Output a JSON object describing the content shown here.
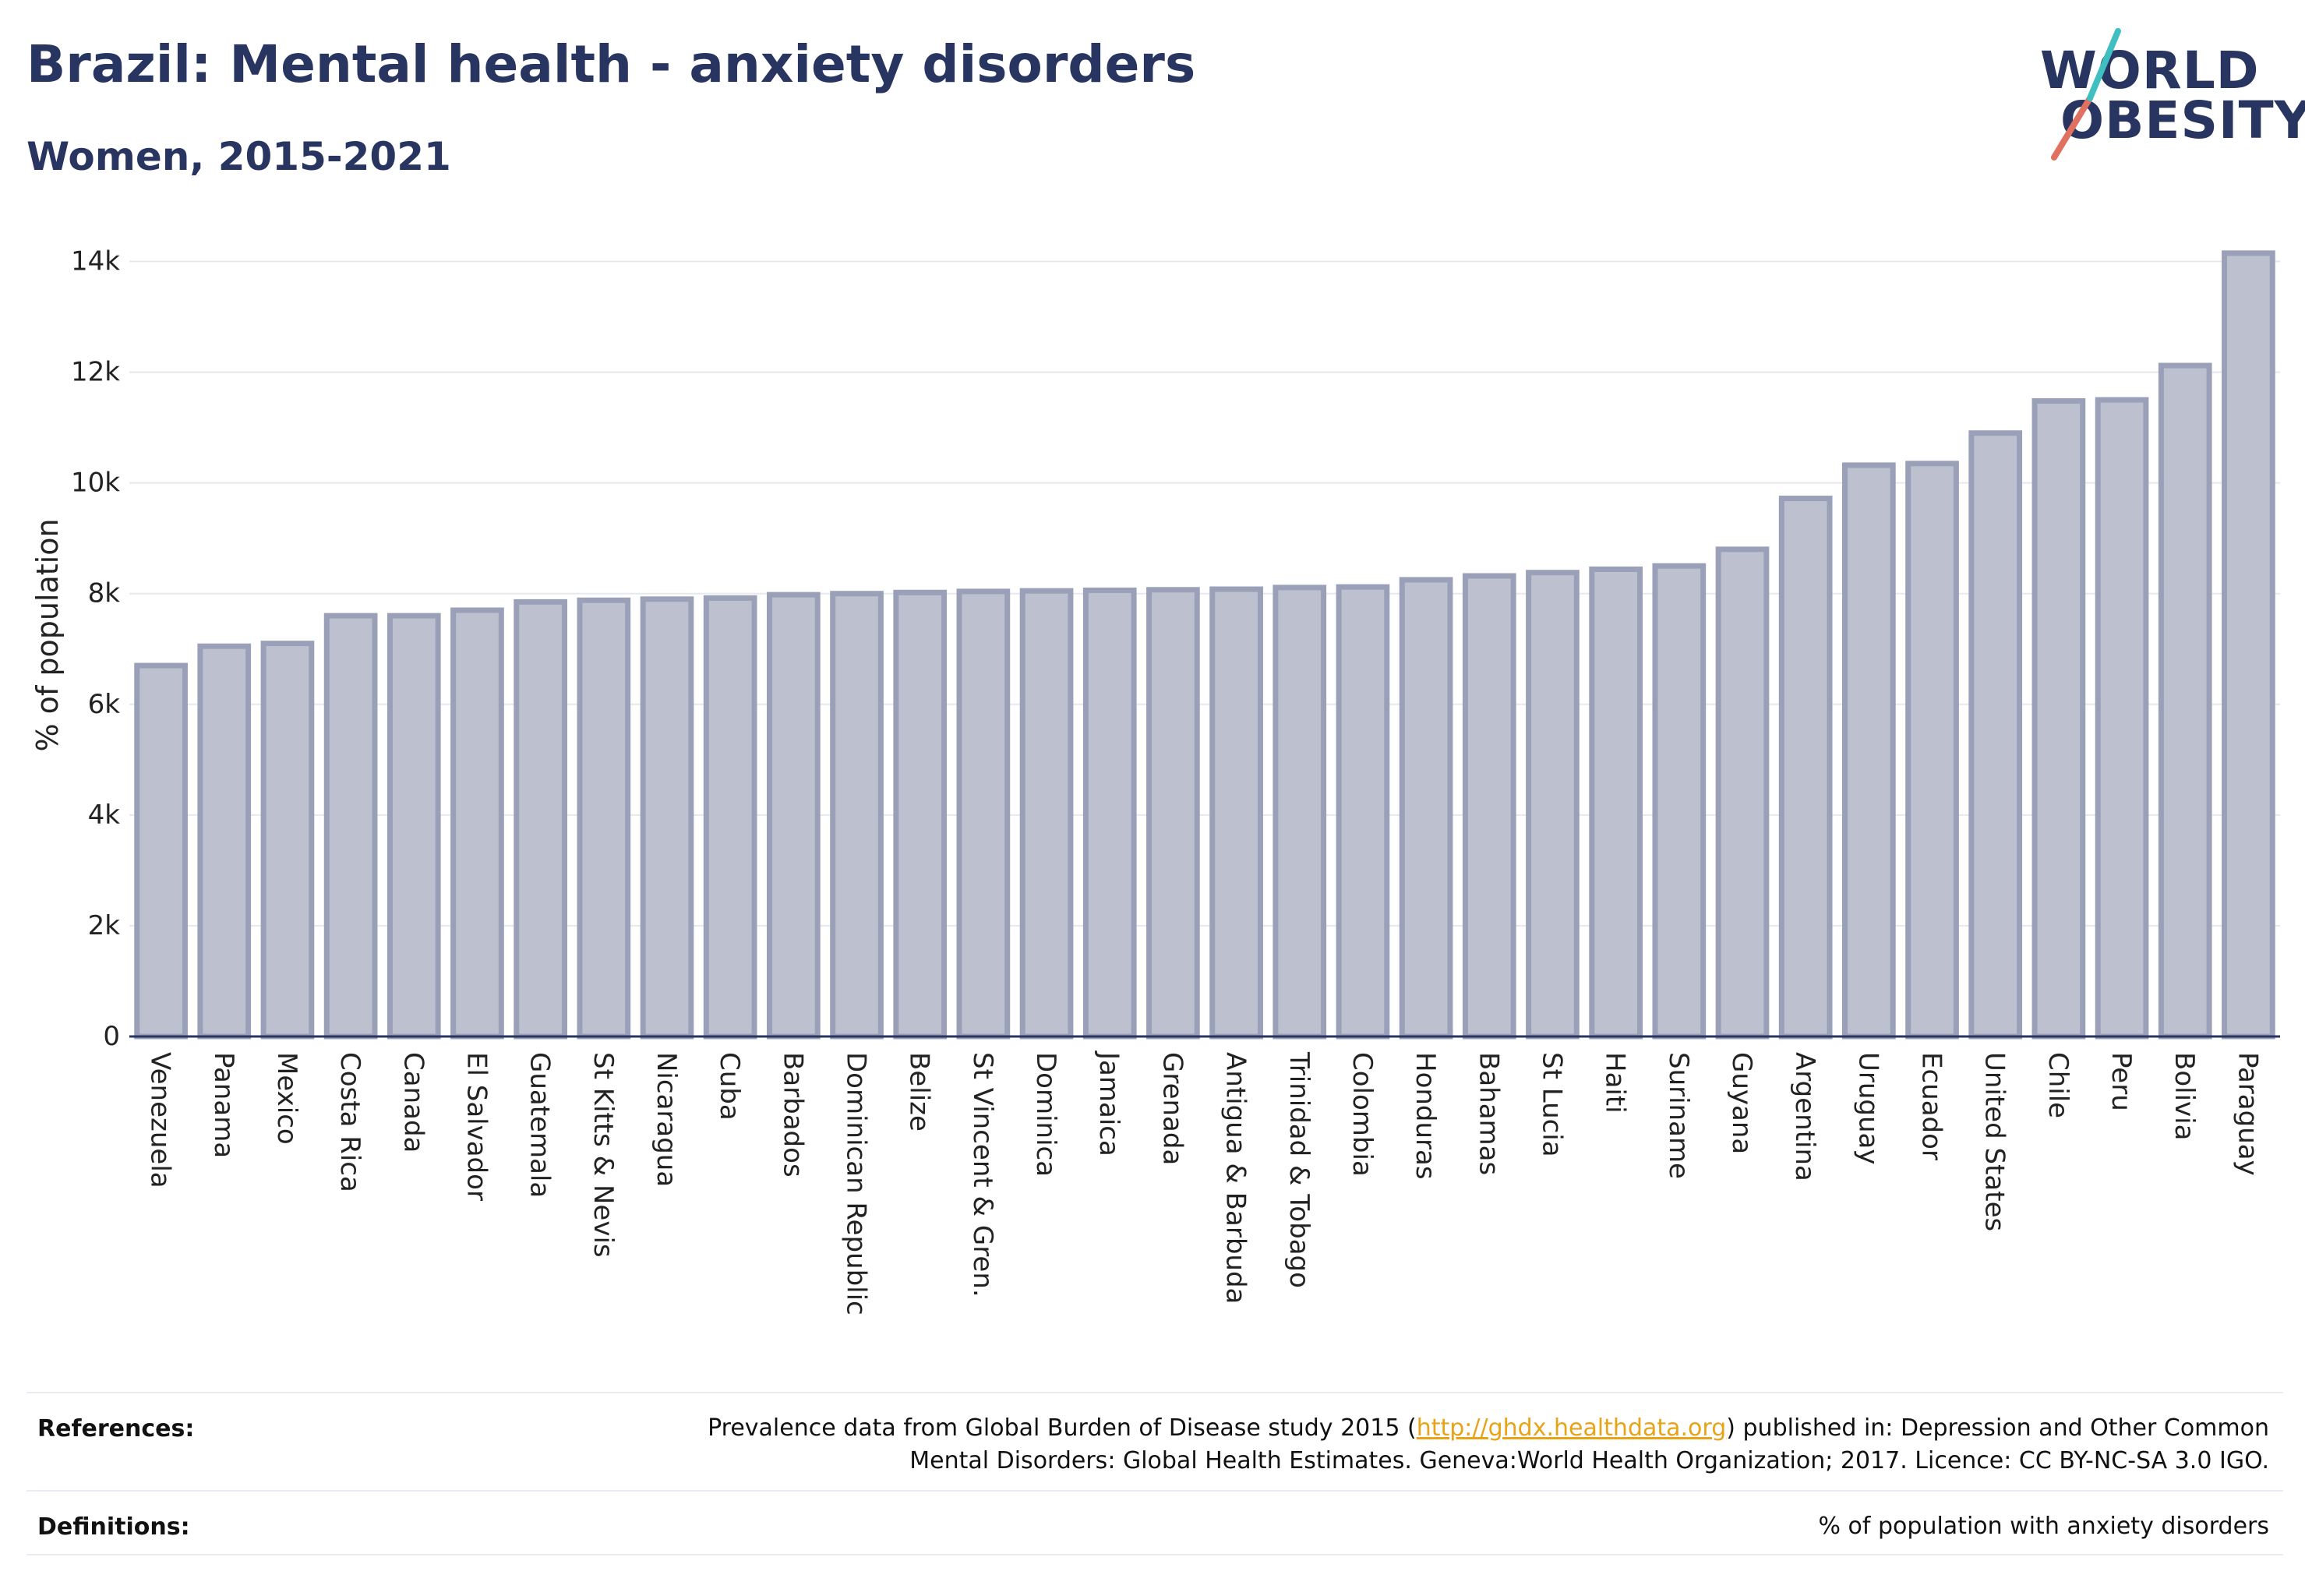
{
  "header": {
    "title": "Brazil: Mental health - anxiety disorders",
    "subtitle": "Women, 2015-2021"
  },
  "logo": {
    "line1": "WORLD",
    "line2": "OBESITY",
    "brand_color": "#283560",
    "slash_colors": [
      "#e0705f",
      "#3fbfbf"
    ]
  },
  "chart_data": {
    "type": "bar",
    "ylabel": "% of population",
    "xlabel": "",
    "ylim": [
      0,
      14500
    ],
    "yticks": [
      0,
      2000,
      4000,
      6000,
      8000,
      10000,
      12000,
      14000
    ],
    "ytick_labels": [
      "0",
      "2k",
      "4k",
      "6k",
      "8k",
      "10k",
      "12k",
      "14k"
    ],
    "grid": true,
    "bar_fill": "#bdc1cf",
    "bar_stroke": "#9aa0b8",
    "categories": [
      "Venezuela",
      "Panama",
      "Mexico",
      "Costa Rica",
      "Canada",
      "El Salvador",
      "Guatemala",
      "St Kitts & Nevis",
      "Nicaragua",
      "Cuba",
      "Barbados",
      "Dominican Republic",
      "Belize",
      "St Vincent & Gren.",
      "Dominica",
      "Jamaica",
      "Grenada",
      "Antigua & Barbuda",
      "Trinidad & Tobago",
      "Colombia",
      "Honduras",
      "Bahamas",
      "St Lucia",
      "Haiti",
      "Suriname",
      "Guyana",
      "Argentina",
      "Uruguay",
      "Ecuador",
      "United States",
      "Chile",
      "Peru",
      "Bolivia",
      "Paraguay"
    ],
    "values": [
      6700,
      7050,
      7100,
      7600,
      7600,
      7700,
      7850,
      7880,
      7900,
      7920,
      7980,
      8000,
      8020,
      8040,
      8050,
      8060,
      8070,
      8080,
      8110,
      8120,
      8250,
      8320,
      8380,
      8440,
      8500,
      8800,
      9720,
      10320,
      10350,
      10900,
      11480,
      11500,
      12120,
      14150
    ]
  },
  "footer": {
    "references_label": "References:",
    "references_text_before": "Prevalence data from Global Burden of Disease study 2015 (",
    "references_link": "http://ghdx.healthdata.org",
    "references_text_after": ") published in: Depression and Other Common",
    "references_line2": "Mental Disorders: Global Health Estimates. Geneva:World Health Organization; 2017. Licence: CC BY-NC-SA 3.0 IGO.",
    "definitions_label": "Definitions:",
    "definitions_text": "% of population with anxiety disorders"
  }
}
